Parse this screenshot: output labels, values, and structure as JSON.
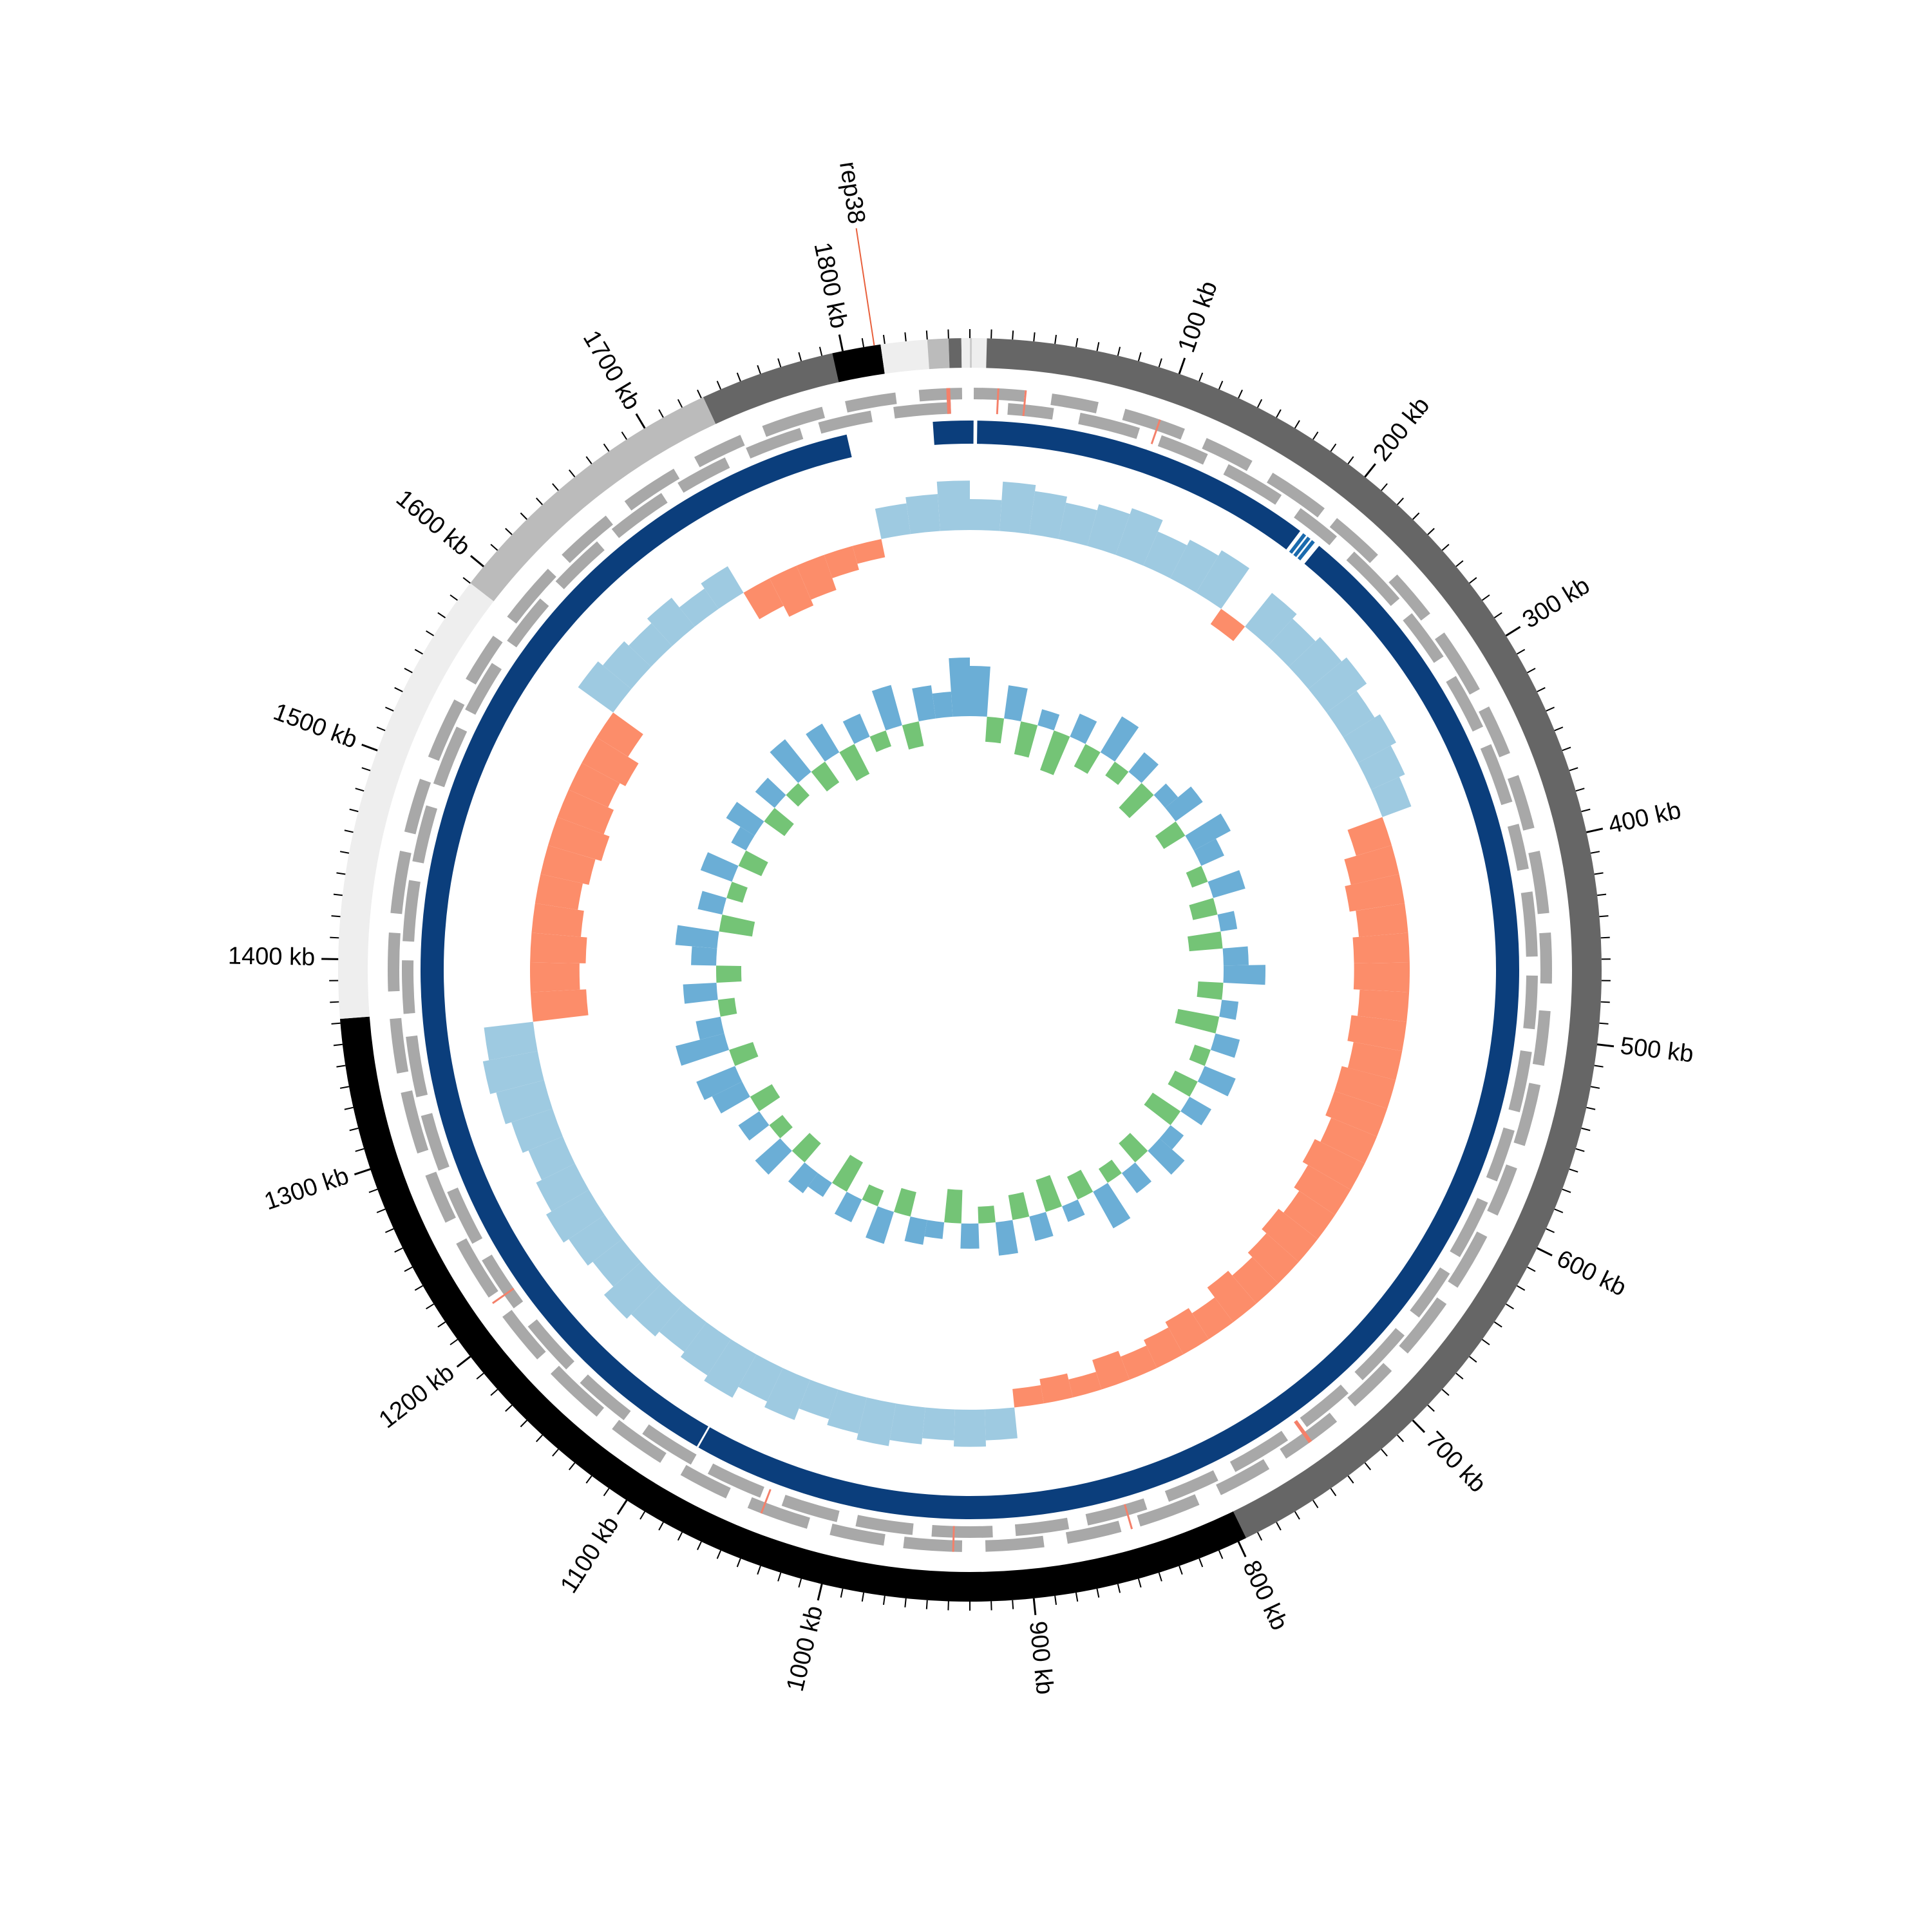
{
  "chart_data": {
    "type": "circular-genome",
    "genome_length": 1860,
    "minor_tick_step": 10,
    "xticks": [
      {
        "value": 100,
        "label": "100 kb"
      },
      {
        "value": 200,
        "label": "200 kb"
      },
      {
        "value": 300,
        "label": "300 kb"
      },
      {
        "value": 400,
        "label": "400 kb"
      },
      {
        "value": 500,
        "label": "500 kb"
      },
      {
        "value": 600,
        "label": "600 kb"
      },
      {
        "value": 700,
        "label": "700 kb"
      },
      {
        "value": 800,
        "label": "800 kb"
      },
      {
        "value": 900,
        "label": "900 kb"
      },
      {
        "value": 1000,
        "label": "1000 kb"
      },
      {
        "value": 1100,
        "label": "1100 kb"
      },
      {
        "value": 1200,
        "label": "1200 kb"
      },
      {
        "value": 1300,
        "label": "1300 kb"
      },
      {
        "value": 1400,
        "label": "1400 kb"
      },
      {
        "value": 1500,
        "label": "1500 kb"
      },
      {
        "value": 1600,
        "label": "1600 kb"
      },
      {
        "value": 1700,
        "label": "1700 kb"
      },
      {
        "value": 1800,
        "label": "1800 kb"
      }
    ],
    "contigs": [
      {
        "start": 0,
        "end": 1,
        "color": "#cccccc"
      },
      {
        "start": 1,
        "end": 8,
        "color": "#eeeeee"
      },
      {
        "start": 8,
        "end": 796,
        "color": "#666666"
      },
      {
        "start": 796,
        "end": 1372,
        "color": "#000000"
      },
      {
        "start": 1372,
        "end": 1590,
        "color": "#eeeeee"
      },
      {
        "start": 1590,
        "end": 1731,
        "color": "#bbbbbb"
      },
      {
        "start": 1731,
        "end": 1795,
        "color": "#666666"
      },
      {
        "start": 1795,
        "end": 1818,
        "color": "#000000"
      },
      {
        "start": 1818,
        "end": 1840,
        "color": "#eeeeee"
      },
      {
        "start": 1840,
        "end": 1850,
        "color": "#bbbbbb"
      },
      {
        "start": 1850,
        "end": 1856,
        "color": "#666666"
      },
      {
        "start": 1856,
        "end": 1860,
        "color": "#eeeeee"
      }
    ],
    "genes": {
      "color": "#a8a8a8",
      "forward": [
        [
          2,
          28
        ],
        [
          42,
          66
        ],
        [
          80,
          112
        ],
        [
          124,
          150
        ],
        [
          162,
          194
        ],
        [
          202,
          230
        ],
        [
          244,
          270
        ],
        [
          282,
          316
        ],
        [
          326,
          352
        ],
        [
          364,
          392
        ],
        [
          404,
          436
        ],
        [
          446,
          472
        ],
        [
          486,
          514
        ],
        [
          524,
          556
        ],
        [
          568,
          594
        ],
        [
          606,
          636
        ],
        [
          646,
          678
        ],
        [
          690,
          716
        ],
        [
          728,
          760
        ],
        [
          770,
          798
        ],
        [
          810,
          842
        ],
        [
          852,
          880
        ],
        [
          892,
          922
        ],
        [
          934,
          964
        ],
        [
          974,
          1002
        ],
        [
          1014,
          1046
        ],
        [
          1058,
          1084
        ],
        [
          1096,
          1126
        ],
        [
          1136,
          1168
        ],
        [
          1178,
          1206
        ],
        [
          1218,
          1250
        ],
        [
          1262,
          1288
        ],
        [
          1300,
          1332
        ],
        [
          1342,
          1370
        ],
        [
          1384,
          1414
        ],
        [
          1424,
          1456
        ],
        [
          1466,
          1494
        ],
        [
          1506,
          1538
        ],
        [
          1550,
          1576
        ],
        [
          1588,
          1620
        ],
        [
          1630,
          1660
        ],
        [
          1672,
          1702
        ],
        [
          1714,
          1740
        ],
        [
          1752,
          1784
        ],
        [
          1796,
          1822
        ],
        [
          1834,
          1856
        ]
      ],
      "reverse": [
        [
          20,
          44
        ],
        [
          58,
          90
        ],
        [
          102,
          128
        ],
        [
          140,
          172
        ],
        [
          184,
          208
        ],
        [
          220,
          254
        ],
        [
          264,
          292
        ],
        [
          304,
          334
        ],
        [
          344,
          376
        ],
        [
          388,
          412
        ],
        [
          424,
          458
        ],
        [
          468,
          496
        ],
        [
          508,
          540
        ],
        [
          550,
          578
        ],
        [
          590,
          622
        ],
        [
          632,
          660
        ],
        [
          672,
          704
        ],
        [
          714,
          742
        ],
        [
          754,
          786
        ],
        [
          796,
          824
        ],
        [
          836,
          868
        ],
        [
          878,
          906
        ],
        [
          918,
          950
        ],
        [
          960,
          990
        ],
        [
          1000,
          1030
        ],
        [
          1042,
          1072
        ],
        [
          1082,
          1112
        ],
        [
          1124,
          1154
        ],
        [
          1164,
          1194
        ],
        [
          1206,
          1236
        ],
        [
          1246,
          1276
        ],
        [
          1288,
          1318
        ],
        [
          1328,
          1360
        ],
        [
          1372,
          1400
        ],
        [
          1410,
          1442
        ],
        [
          1452,
          1482
        ],
        [
          1494,
          1526
        ],
        [
          1536,
          1564
        ],
        [
          1578,
          1606
        ],
        [
          1618,
          1648
        ],
        [
          1658,
          1690
        ],
        [
          1700,
          1728
        ],
        [
          1740,
          1770
        ],
        [
          1780,
          1808
        ],
        [
          1820,
          1850
        ]
      ]
    },
    "rna": {
      "color": "#f4806a",
      "features": [
        [
          1848,
          1850
        ],
        [
          14,
          15
        ],
        [
          28,
          29
        ],
        [
          98,
          99
        ],
        [
          744,
          746
        ],
        [
          846,
          847
        ],
        [
          938,
          939
        ],
        [
          1038,
          1039
        ],
        [
          1214,
          1215
        ]
      ]
    },
    "blast_blocks": [
      {
        "start": 1840,
        "end": 1860,
        "color": "#0b3e7c"
      },
      {
        "start": 0,
        "end": 2,
        "color": "#0b3e7c"
      },
      {
        "start": 4,
        "end": 191,
        "color": "#0b3e7c"
      },
      {
        "start": 193,
        "end": 195,
        "color": "#1a6aad"
      },
      {
        "start": 196,
        "end": 198,
        "color": "#1a6aad"
      },
      {
        "start": 199,
        "end": 201,
        "color": "#1a6aad"
      },
      {
        "start": 204,
        "end": 1083,
        "color": "#0b3e7c"
      },
      {
        "start": 1084,
        "end": 1793,
        "color": "#0b3e7c"
      }
    ],
    "gc_skew": {
      "bin_size": 20,
      "ylim": [
        -1,
        1
      ],
      "positive_color": "#9ecae1",
      "negative_color": "#fc8d6a",
      "values": [
        0.5,
        0.8,
        0.7,
        0.6,
        0.7,
        0.8,
        0.6,
        0.7,
        0.8,
        -0.3,
        0.7,
        0.6,
        0.7,
        0.8,
        0.6,
        0.7,
        0.6,
        0.5,
        -0.6,
        -0.8,
        -0.9,
        -0.8,
        -0.9,
        -0.9,
        -0.8,
        -0.9,
        -0.8,
        -0.9,
        -0.9,
        -0.8,
        -0.9,
        -0.8,
        -0.7,
        -0.8,
        -0.7,
        -0.6,
        -0.7,
        -0.5,
        -0.6,
        -0.5,
        -0.4,
        -0.5,
        -0.3,
        -0.4,
        -0.3,
        0.5,
        0.6,
        0.5,
        0.6,
        0.7,
        0.6,
        0.5,
        0.7,
        0.6,
        0.8,
        0.7,
        0.6,
        0.7,
        0.8,
        0.6,
        0.7,
        0.8,
        0.7,
        0.6,
        0.7,
        0.8,
        0.9,
        0.8,
        -0.9,
        -0.8,
        -0.9,
        -0.8,
        -0.7,
        -0.8,
        -0.9,
        -0.8,
        -0.7,
        -0.8,
        -0.6,
        0.7,
        0.6,
        0.5,
        0.6,
        0.4,
        0.5,
        -0.5,
        -0.7,
        -0.6,
        -0.4,
        -0.3,
        0.5,
        0.6,
        0.8
      ]
    },
    "gc_content": {
      "bin_size": 20,
      "ylim": [
        -1,
        1
      ],
      "positive_color": "#6baed6",
      "negative_color": "#74c476",
      "values": [
        0.6,
        -0.3,
        0.4,
        -0.4,
        0.2,
        -0.5,
        0.3,
        -0.3,
        0.5,
        -0.2,
        0.3,
        -0.4,
        0.2,
        0.4,
        -0.3,
        0.5,
        0.3,
        -0.2,
        0.4,
        -0.3,
        0.2,
        -0.4,
        0.3,
        0.5,
        -0.3,
        0.2,
        -0.5,
        0.3,
        -0.2,
        0.4,
        -0.3,
        0.3,
        -0.4,
        0.2,
        0.4,
        -0.3,
        0.3,
        -0.2,
        0.5,
        -0.3,
        0.2,
        -0.4,
        0.3,
        -0.3,
        0.4,
        -0.2,
        0.3,
        -0.4,
        0.2,
        0.3,
        -0.3,
        0.4,
        -0.2,
        0.3,
        -0.4,
        0.2,
        0.3,
        -0.3,
        0.4,
        -0.2,
        0.3,
        -0.3,
        0.4,
        0.5,
        -0.3,
        0.6,
        0.3,
        -0.2,
        0.4,
        -0.3,
        0.3,
        0.5,
        -0.4,
        0.3,
        -0.2,
        0.4,
        -0.3,
        0.2,
        0.4,
        -0.3,
        0.3,
        -0.2,
        0.5,
        -0.3,
        0.4,
        -0.4,
        0.3,
        -0.2,
        0.5,
        -0.3,
        0.4,
        0.3,
        0.7
      ]
    },
    "annotations": [
      {
        "label": "rep38",
        "position": 1815,
        "label_color": "#2171b5",
        "line_color": "#e8603c"
      }
    ]
  }
}
